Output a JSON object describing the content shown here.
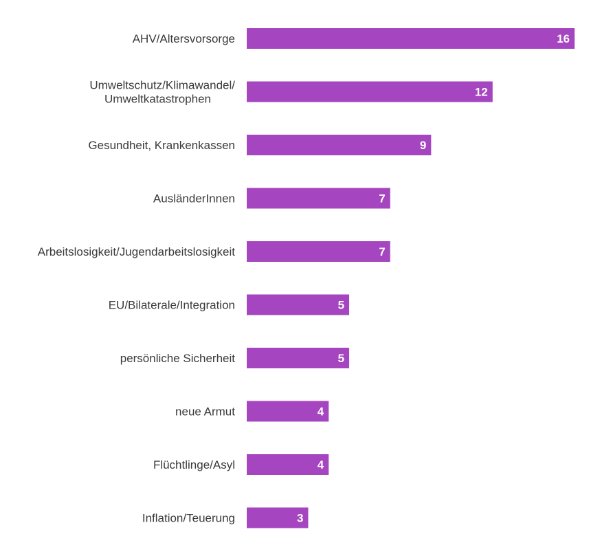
{
  "chart_data": {
    "type": "bar",
    "orientation": "horizontal",
    "bar_color": "#a545c0",
    "value_label_color": "#ffffff",
    "categories": [
      [
        "AHV/Altersvorsorge"
      ],
      [
        "Umweltschutz/Klimawandel/",
        "Umweltkatastrophen"
      ],
      [
        "Gesundheit, Krankenkassen"
      ],
      [
        "AusländerInnen"
      ],
      [
        "Arbeitslosigkeit/Jugendarbeitslosigkeit"
      ],
      [
        "EU/Bilaterale/Integration"
      ],
      [
        "persönliche Sicherheit"
      ],
      [
        "neue Armut"
      ],
      [
        "Flüchtlinge/Asyl"
      ],
      [
        "Inflation/Teuerung"
      ]
    ],
    "values": [
      16,
      12,
      9,
      7,
      7,
      5,
      5,
      4,
      4,
      3
    ],
    "value_labels": [
      "16",
      "12",
      "9",
      "7",
      "7",
      "5",
      "5",
      "4",
      "4",
      "3"
    ],
    "xlim": [
      0,
      16
    ],
    "grid": false,
    "legend": "none",
    "title": "",
    "xlabel": "",
    "ylabel": ""
  }
}
